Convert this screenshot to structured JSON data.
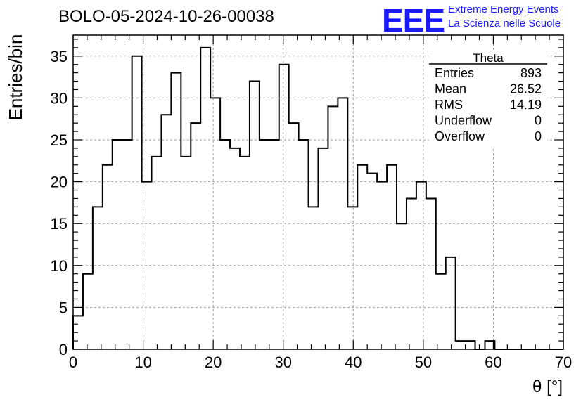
{
  "header": {
    "title": "BOLO-05-2024-10-26-00038",
    "logo_text": "EEE",
    "logo_line1": "Extreme Energy Events",
    "logo_line2": "La Scienza nelle Scuole"
  },
  "stats_box": {
    "name": "Theta",
    "rows": [
      {
        "label": "Entries",
        "value": "893"
      },
      {
        "label": "Mean",
        "value": "26.52"
      },
      {
        "label": "RMS",
        "value": "14.19"
      },
      {
        "label": "Underflow",
        "value": "0"
      },
      {
        "label": "Overflow",
        "value": "0"
      }
    ]
  },
  "chart_data": {
    "type": "bar",
    "histogram": true,
    "xlabel": "θ [°]",
    "ylabel": "Entries/bin",
    "xlim": [
      0,
      70
    ],
    "ylim": [
      0,
      37.5
    ],
    "xticks": [
      0,
      10,
      20,
      30,
      40,
      50,
      60,
      70
    ],
    "yticks": [
      0,
      5,
      10,
      15,
      20,
      25,
      30,
      35
    ],
    "grid": true,
    "bin_edges_start": 0,
    "bin_width": 1.4,
    "values": [
      4,
      9,
      17,
      22,
      25,
      25,
      35,
      20,
      23,
      28,
      33,
      23,
      27,
      36,
      30,
      25,
      24,
      23,
      32,
      25,
      25,
      34,
      27,
      25,
      17,
      24,
      29,
      30,
      17,
      22,
      21,
      20,
      22,
      15,
      18,
      20,
      18,
      9,
      11,
      1,
      1,
      0,
      1,
      0,
      0,
      0,
      0,
      0,
      0,
      0
    ],
    "colors": {
      "line": "#000000",
      "grid": "#a0a0a0",
      "logo": "#1a1aff"
    }
  }
}
